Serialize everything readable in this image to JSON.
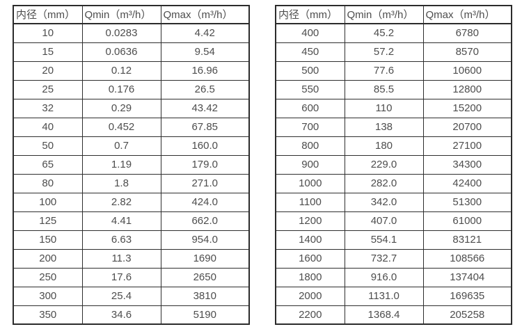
{
  "page": {
    "background_color": "#ffffff",
    "text_color": "#4d4d4d",
    "border_color": "#2b2b2b"
  },
  "tables": [
    {
      "name": "flow-spec-table-small-diameters",
      "headers": [
        "内径（mm）",
        "Qmin（m³/h）",
        "Qmax（m³/h）"
      ],
      "rows": [
        [
          "10",
          "0.0283",
          "4.42"
        ],
        [
          "15",
          "0.0636",
          "9.54"
        ],
        [
          "20",
          "0.12",
          "16.96"
        ],
        [
          "25",
          "0.176",
          "26.5"
        ],
        [
          "32",
          "0.29",
          "43.42"
        ],
        [
          "40",
          "0.452",
          "67.85"
        ],
        [
          "50",
          "0.7",
          "160.0"
        ],
        [
          "65",
          "1.19",
          "179.0"
        ],
        [
          "80",
          "1.8",
          "271.0"
        ],
        [
          "100",
          "2.82",
          "424.0"
        ],
        [
          "125",
          "4.41",
          "662.0"
        ],
        [
          "150",
          "6.63",
          "954.0"
        ],
        [
          "200",
          "11.3",
          "1690"
        ],
        [
          "250",
          "17.6",
          "2650"
        ],
        [
          "300",
          "25.4",
          "3810"
        ],
        [
          "350",
          "34.6",
          "5190"
        ]
      ]
    },
    {
      "name": "flow-spec-table-large-diameters",
      "headers": [
        "内径（mm）",
        "Qmin（m³/h）",
        "Qmax（m³/h）"
      ],
      "rows": [
        [
          "400",
          "45.2",
          "6780"
        ],
        [
          "450",
          "57.2",
          "8570"
        ],
        [
          "500",
          "77.6",
          "10600"
        ],
        [
          "550",
          "85.5",
          "12800"
        ],
        [
          "600",
          "110",
          "15200"
        ],
        [
          "700",
          "138",
          "20700"
        ],
        [
          "800",
          "180",
          "27100"
        ],
        [
          "900",
          "229.0",
          "34300"
        ],
        [
          "1000",
          "282.0",
          "42400"
        ],
        [
          "1100",
          "342.0",
          "51300"
        ],
        [
          "1200",
          "407.0",
          "61000"
        ],
        [
          "1400",
          "554.1",
          "83121"
        ],
        [
          "1600",
          "732.7",
          "108566"
        ],
        [
          "1800",
          "916.0",
          "137404"
        ],
        [
          "2000",
          "1131.0",
          "169635"
        ],
        [
          "2200",
          "1368.4",
          "205258"
        ]
      ]
    }
  ]
}
